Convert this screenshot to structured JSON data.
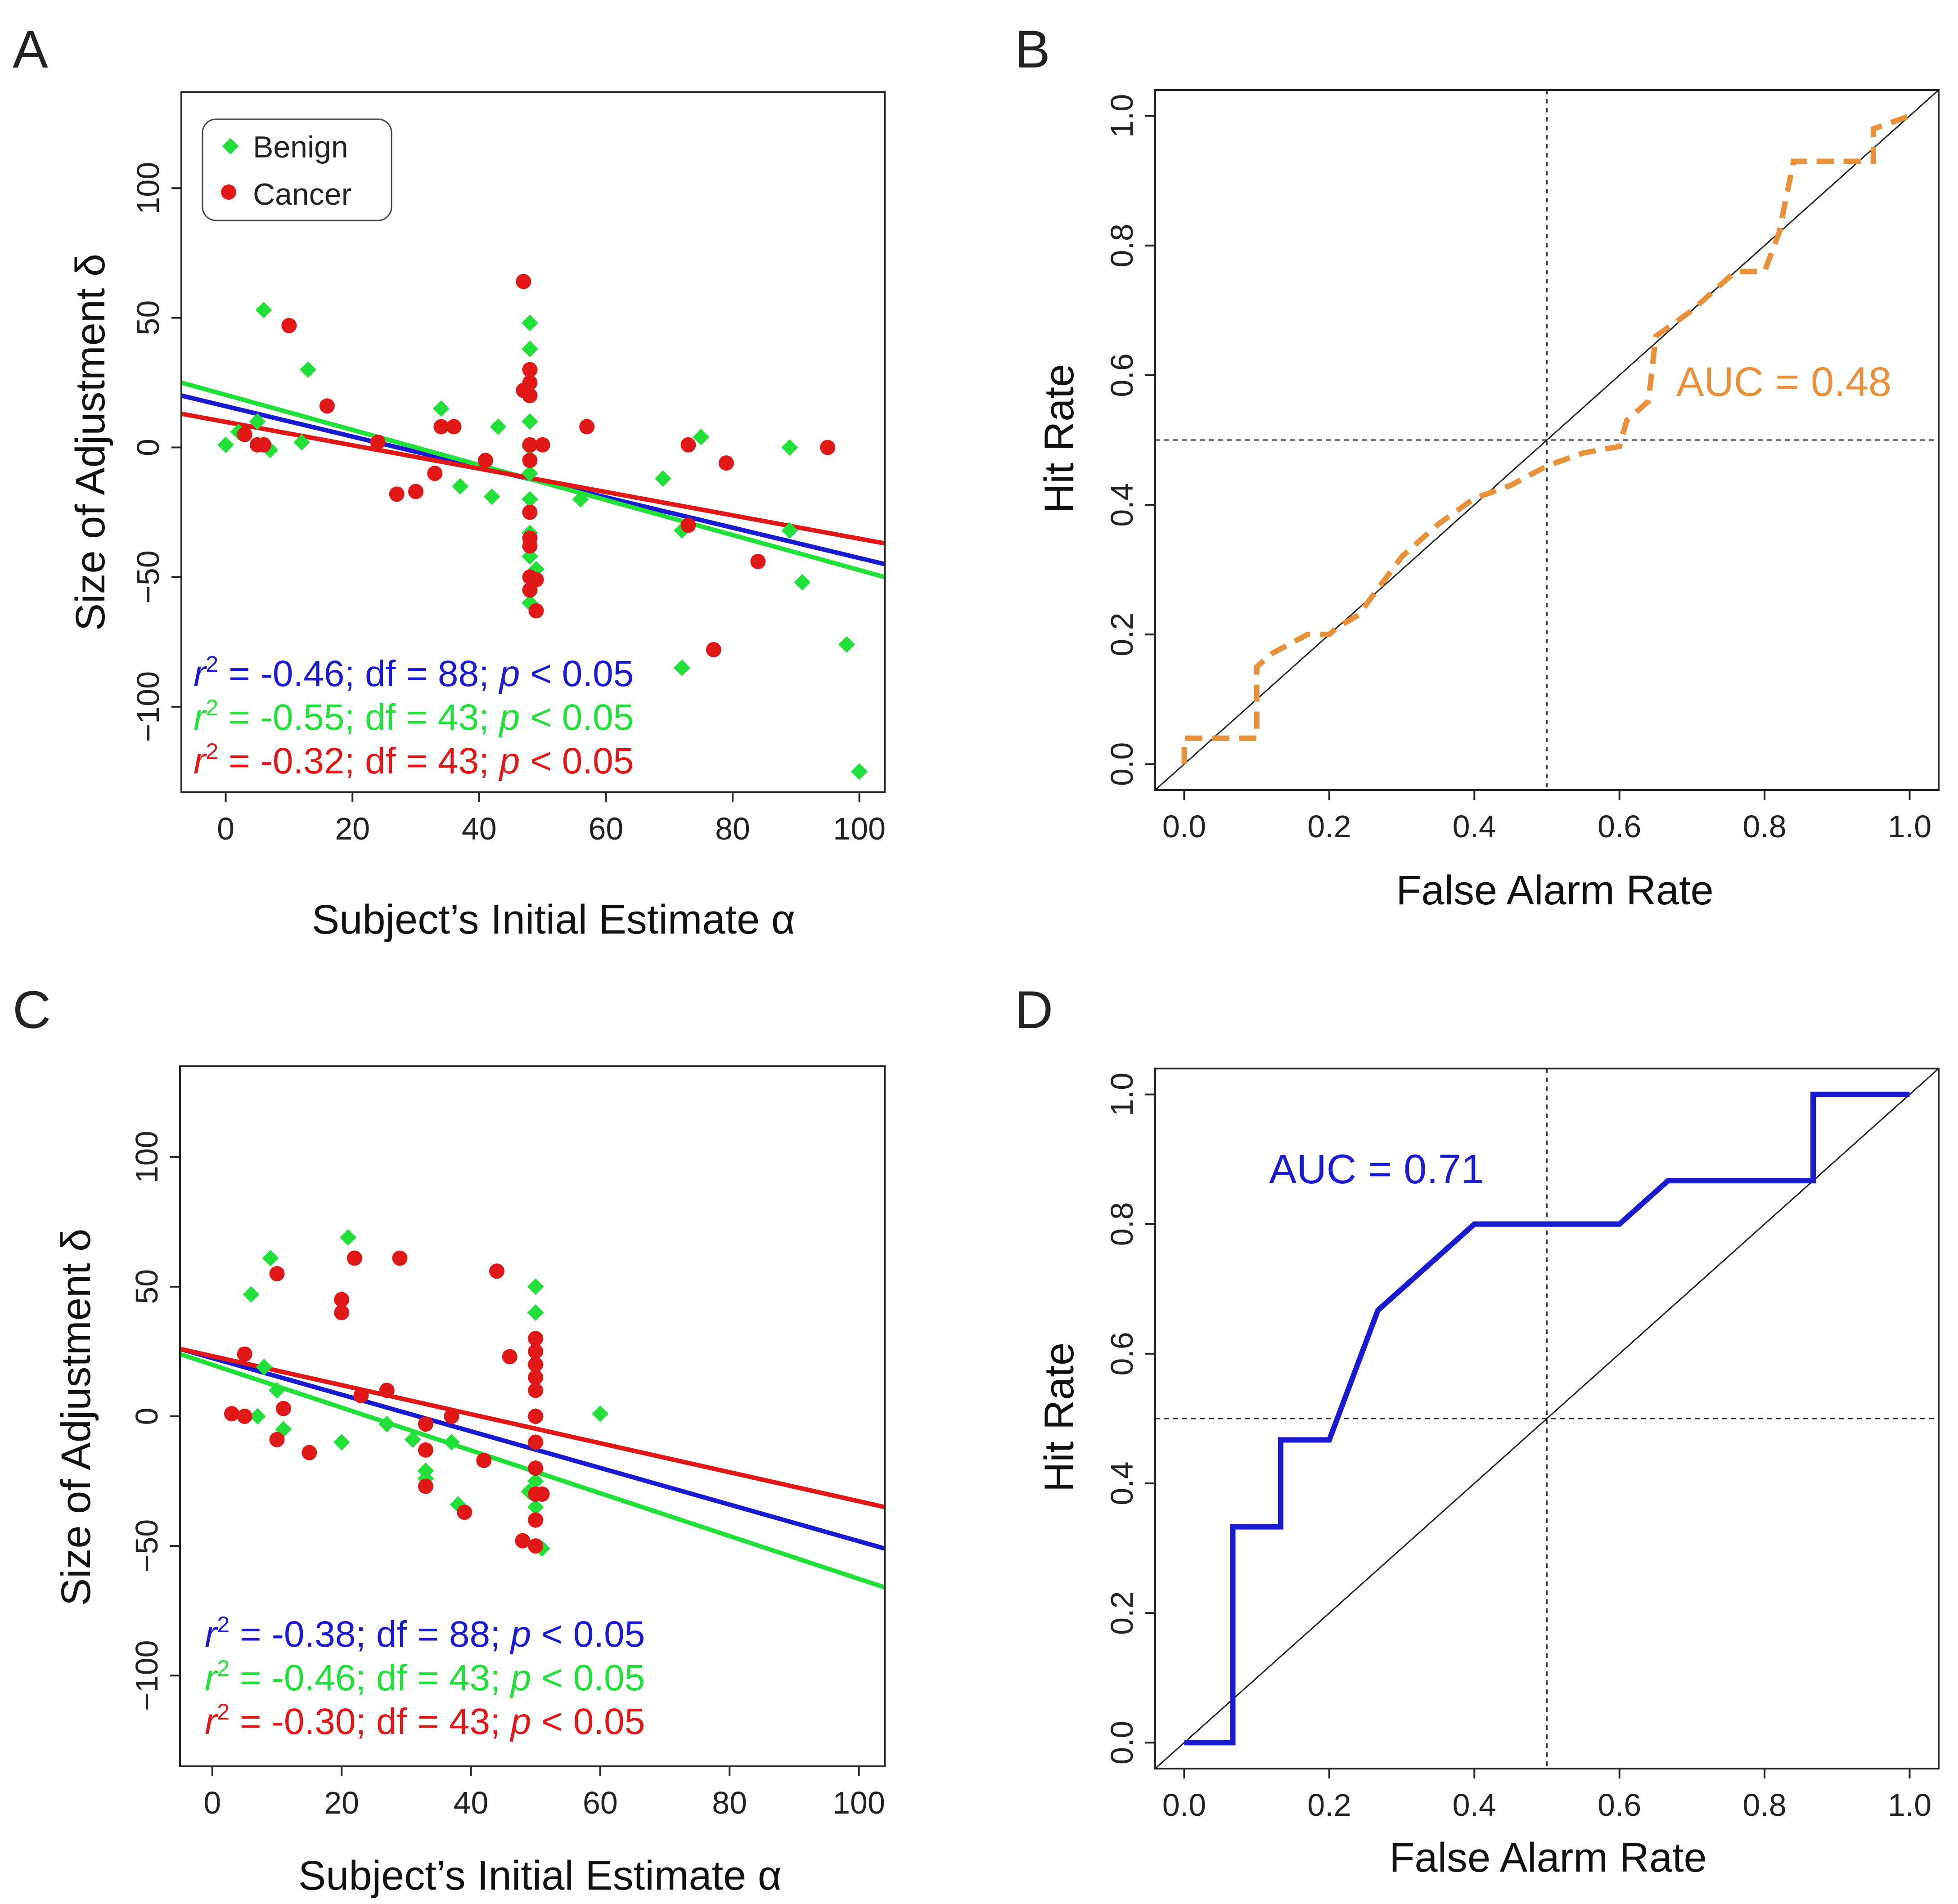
{
  "colors": {
    "blue": "#1a1ad0",
    "green": "#22e03a",
    "red": "#e01818",
    "orange": "#e8913a",
    "axis": "#222222"
  },
  "panel_labels": [
    "A",
    "B",
    "C",
    "D"
  ],
  "legend": {
    "benign": "Benign",
    "cancer": "Cancer"
  },
  "chart_data": [
    {
      "panel": "A",
      "type": "scatter",
      "xlabel": "Subject’s Initial Estimate α",
      "ylabel": "Size of Adjustment δ",
      "xlim": [
        -7,
        104
      ],
      "ylim": [
        -133,
        137
      ],
      "xticks": [
        "0",
        "20",
        "40",
        "60",
        "80",
        "100"
      ],
      "yticks": [
        "−100",
        "−50",
        "0",
        "50",
        "100"
      ],
      "legend": [
        "Benign",
        "Cancer"
      ],
      "series": [
        {
          "name": "Benign",
          "marker": "diamond",
          "color": "green",
          "points": [
            [
              0,
              1
            ],
            [
              2,
              6
            ],
            [
              5,
              10
            ],
            [
              6,
              53
            ],
            [
              7,
              -1
            ],
            [
              12,
              2
            ],
            [
              13,
              30
            ],
            [
              34,
              15
            ],
            [
              37,
              -15
            ],
            [
              42,
              -19
            ],
            [
              43,
              8
            ],
            [
              48,
              48
            ],
            [
              48,
              38
            ],
            [
              48,
              30
            ],
            [
              48,
              20
            ],
            [
              48,
              10
            ],
            [
              48,
              0
            ],
            [
              48,
              -10
            ],
            [
              48,
              -20
            ],
            [
              48,
              -33
            ],
            [
              48,
              -42
            ],
            [
              48,
              -55
            ],
            [
              48,
              -60
            ],
            [
              49,
              -47
            ],
            [
              56,
              -20
            ],
            [
              69,
              -12
            ],
            [
              72,
              -32
            ],
            [
              72,
              -85
            ],
            [
              75,
              4
            ],
            [
              89,
              0
            ],
            [
              89,
              -32
            ],
            [
              91,
              -52
            ],
            [
              98,
              -76
            ],
            [
              100,
              -125
            ]
          ]
        },
        {
          "name": "Cancer",
          "marker": "circle",
          "color": "red",
          "points": [
            [
              3,
              5
            ],
            [
              5,
              1
            ],
            [
              6,
              1
            ],
            [
              10,
              47
            ],
            [
              16,
              16
            ],
            [
              24,
              2
            ],
            [
              27,
              -18
            ],
            [
              30,
              -17
            ],
            [
              33,
              -10
            ],
            [
              34,
              8
            ],
            [
              36,
              8
            ],
            [
              41,
              -5
            ],
            [
              47,
              64
            ],
            [
              47,
              22
            ],
            [
              48,
              30
            ],
            [
              48,
              25
            ],
            [
              48,
              20
            ],
            [
              48,
              1
            ],
            [
              48,
              -5
            ],
            [
              48,
              -25
            ],
            [
              48,
              -35
            ],
            [
              48,
              -38
            ],
            [
              48,
              -50
            ],
            [
              48,
              -55
            ],
            [
              49,
              -63
            ],
            [
              49,
              -51
            ],
            [
              50,
              1
            ],
            [
              57,
              8
            ],
            [
              73,
              1
            ],
            [
              73,
              -30
            ],
            [
              77,
              -78
            ],
            [
              79,
              -6
            ],
            [
              84,
              -44
            ],
            [
              95,
              0
            ]
          ]
        }
      ],
      "lines": [
        {
          "name": "All",
          "color": "blue",
          "x": [
            -7,
            104
          ],
          "y": [
            20,
            -45
          ]
        },
        {
          "name": "Benign",
          "color": "green",
          "x": [
            -7,
            104
          ],
          "y": [
            25,
            -50
          ]
        },
        {
          "name": "Cancer",
          "color": "red",
          "x": [
            -7,
            104
          ],
          "y": [
            13,
            -37
          ]
        }
      ],
      "stats": [
        {
          "color": "blue",
          "r2": "-0.46",
          "df": "88",
          "p": "0.05"
        },
        {
          "color": "green",
          "r2": "-0.55",
          "df": "43",
          "p": "0.05"
        },
        {
          "color": "red",
          "r2": "-0.32",
          "df": "43",
          "p": "0.05"
        }
      ]
    },
    {
      "panel": "B",
      "type": "line",
      "title": "",
      "xlabel": "False Alarm Rate",
      "ylabel": "Hit Rate",
      "xlim": [
        -0.04,
        1.04
      ],
      "ylim": [
        -0.04,
        1.04
      ],
      "xticks": [
        "0.0",
        "0.2",
        "0.4",
        "0.6",
        "0.8",
        "1.0"
      ],
      "yticks": [
        "0.0",
        "0.2",
        "0.4",
        "0.6",
        "0.8",
        "1.0"
      ],
      "annotation": "AUC = 0.48",
      "annotation_color": "orange",
      "series": [
        {
          "name": "ROC",
          "style": "dashed",
          "color": "orange",
          "x": [
            0.0,
            0.0,
            0.1,
            0.1,
            0.12,
            0.17,
            0.2,
            0.21,
            0.24,
            0.26,
            0.3,
            0.35,
            0.4,
            0.45,
            0.5,
            0.55,
            0.6,
            0.61,
            0.64,
            0.65,
            0.7,
            0.76,
            0.8,
            0.82,
            0.84,
            0.95,
            0.95,
            1.0
          ],
          "y": [
            0.0,
            0.04,
            0.04,
            0.15,
            0.17,
            0.2,
            0.2,
            0.21,
            0.23,
            0.26,
            0.32,
            0.37,
            0.41,
            0.43,
            0.46,
            0.48,
            0.49,
            0.53,
            0.56,
            0.66,
            0.7,
            0.76,
            0.76,
            0.82,
            0.93,
            0.93,
            0.98,
            1.0
          ]
        },
        {
          "name": "Chance",
          "style": "solid",
          "color": "axis",
          "x": [
            -0.04,
            1.04
          ],
          "y": [
            -0.04,
            1.04
          ]
        }
      ],
      "reference_lines": {
        "x": 0.5,
        "y": 0.5
      }
    },
    {
      "panel": "C",
      "type": "scatter",
      "xlabel": "Subject’s Initial Estimate α",
      "ylabel": "Size of Adjustment δ",
      "xlim": [
        -5,
        104
      ],
      "ylim": [
        -135,
        135
      ],
      "xticks": [
        "0",
        "20",
        "40",
        "60",
        "80",
        "100"
      ],
      "yticks": [
        "−100",
        "−50",
        "0",
        "50",
        "100"
      ],
      "series": [
        {
          "name": "Benign",
          "marker": "diamond",
          "color": "green",
          "points": [
            [
              6,
              47
            ],
            [
              7,
              0
            ],
            [
              8,
              19
            ],
            [
              9,
              61
            ],
            [
              10,
              10
            ],
            [
              11,
              -5
            ],
            [
              20,
              -10
            ],
            [
              21,
              69
            ],
            [
              27,
              -3
            ],
            [
              31,
              -9
            ],
            [
              33,
              -24
            ],
            [
              33,
              -21
            ],
            [
              37,
              -10
            ],
            [
              38,
              -34
            ],
            [
              50,
              50
            ],
            [
              50,
              40
            ],
            [
              50,
              30
            ],
            [
              50,
              20
            ],
            [
              50,
              10
            ],
            [
              50,
              0
            ],
            [
              50,
              -10
            ],
            [
              50,
              -20
            ],
            [
              50,
              -25
            ],
            [
              50,
              -35
            ],
            [
              50,
              -40
            ],
            [
              49,
              -29
            ],
            [
              51,
              -51
            ],
            [
              60,
              1
            ]
          ]
        },
        {
          "name": "Cancer",
          "marker": "circle",
          "color": "red",
          "points": [
            [
              3,
              1
            ],
            [
              5,
              0
            ],
            [
              5,
              24
            ],
            [
              10,
              55
            ],
            [
              10,
              -9
            ],
            [
              11,
              3
            ],
            [
              15,
              -14
            ],
            [
              20,
              45
            ],
            [
              20,
              40
            ],
            [
              22,
              61
            ],
            [
              23,
              8
            ],
            [
              27,
              10
            ],
            [
              29,
              61
            ],
            [
              33,
              -3
            ],
            [
              33,
              -13
            ],
            [
              33,
              -27
            ],
            [
              37,
              0
            ],
            [
              39,
              -37
            ],
            [
              42,
              -17
            ],
            [
              44,
              56
            ],
            [
              46,
              23
            ],
            [
              48,
              -48
            ],
            [
              50,
              30
            ],
            [
              50,
              25
            ],
            [
              50,
              20
            ],
            [
              50,
              15
            ],
            [
              50,
              10
            ],
            [
              50,
              0
            ],
            [
              50,
              -10
            ],
            [
              50,
              -20
            ],
            [
              50,
              -30
            ],
            [
              50,
              -40
            ],
            [
              50,
              -50
            ],
            [
              51,
              -30
            ]
          ]
        }
      ],
      "lines": [
        {
          "name": "All",
          "color": "blue",
          "x": [
            -5,
            104
          ],
          "y": [
            26,
            -51
          ]
        },
        {
          "name": "Benign",
          "color": "green",
          "x": [
            -5,
            104
          ],
          "y": [
            24,
            -66
          ]
        },
        {
          "name": "Cancer",
          "color": "red",
          "x": [
            -5,
            104
          ],
          "y": [
            26,
            -35
          ]
        }
      ],
      "stats": [
        {
          "color": "blue",
          "r2": "-0.38",
          "df": "88",
          "p": "0.05"
        },
        {
          "color": "green",
          "r2": "-0.46",
          "df": "43",
          "p": "0.05"
        },
        {
          "color": "red",
          "r2": "-0.30",
          "df": "43",
          "p": "0.05"
        }
      ]
    },
    {
      "panel": "D",
      "type": "line",
      "xlabel": "False Alarm Rate",
      "ylabel": "Hit Rate",
      "xlim": [
        -0.04,
        1.04
      ],
      "ylim": [
        -0.04,
        1.04
      ],
      "xticks": [
        "0.0",
        "0.2",
        "0.4",
        "0.6",
        "0.8",
        "1.0"
      ],
      "yticks": [
        "0.0",
        "0.2",
        "0.4",
        "0.6",
        "0.8",
        "1.0"
      ],
      "annotation": "AUC = 0.71",
      "annotation_color": "blue",
      "series": [
        {
          "name": "ROC",
          "style": "solid",
          "color": "blue",
          "x": [
            0.0,
            0.067,
            0.067,
            0.133,
            0.133,
            0.2,
            0.267,
            0.4,
            0.6,
            0.667,
            0.867,
            0.867,
            1.0
          ],
          "y": [
            0.0,
            0.0,
            0.333,
            0.333,
            0.467,
            0.467,
            0.667,
            0.8,
            0.8,
            0.867,
            0.867,
            1.0,
            1.0
          ]
        },
        {
          "name": "Chance",
          "style": "solid",
          "color": "axis",
          "x": [
            -0.04,
            1.04
          ],
          "y": [
            -0.04,
            1.04
          ]
        }
      ],
      "reference_lines": {
        "x": 0.5,
        "y": 0.5
      }
    }
  ]
}
